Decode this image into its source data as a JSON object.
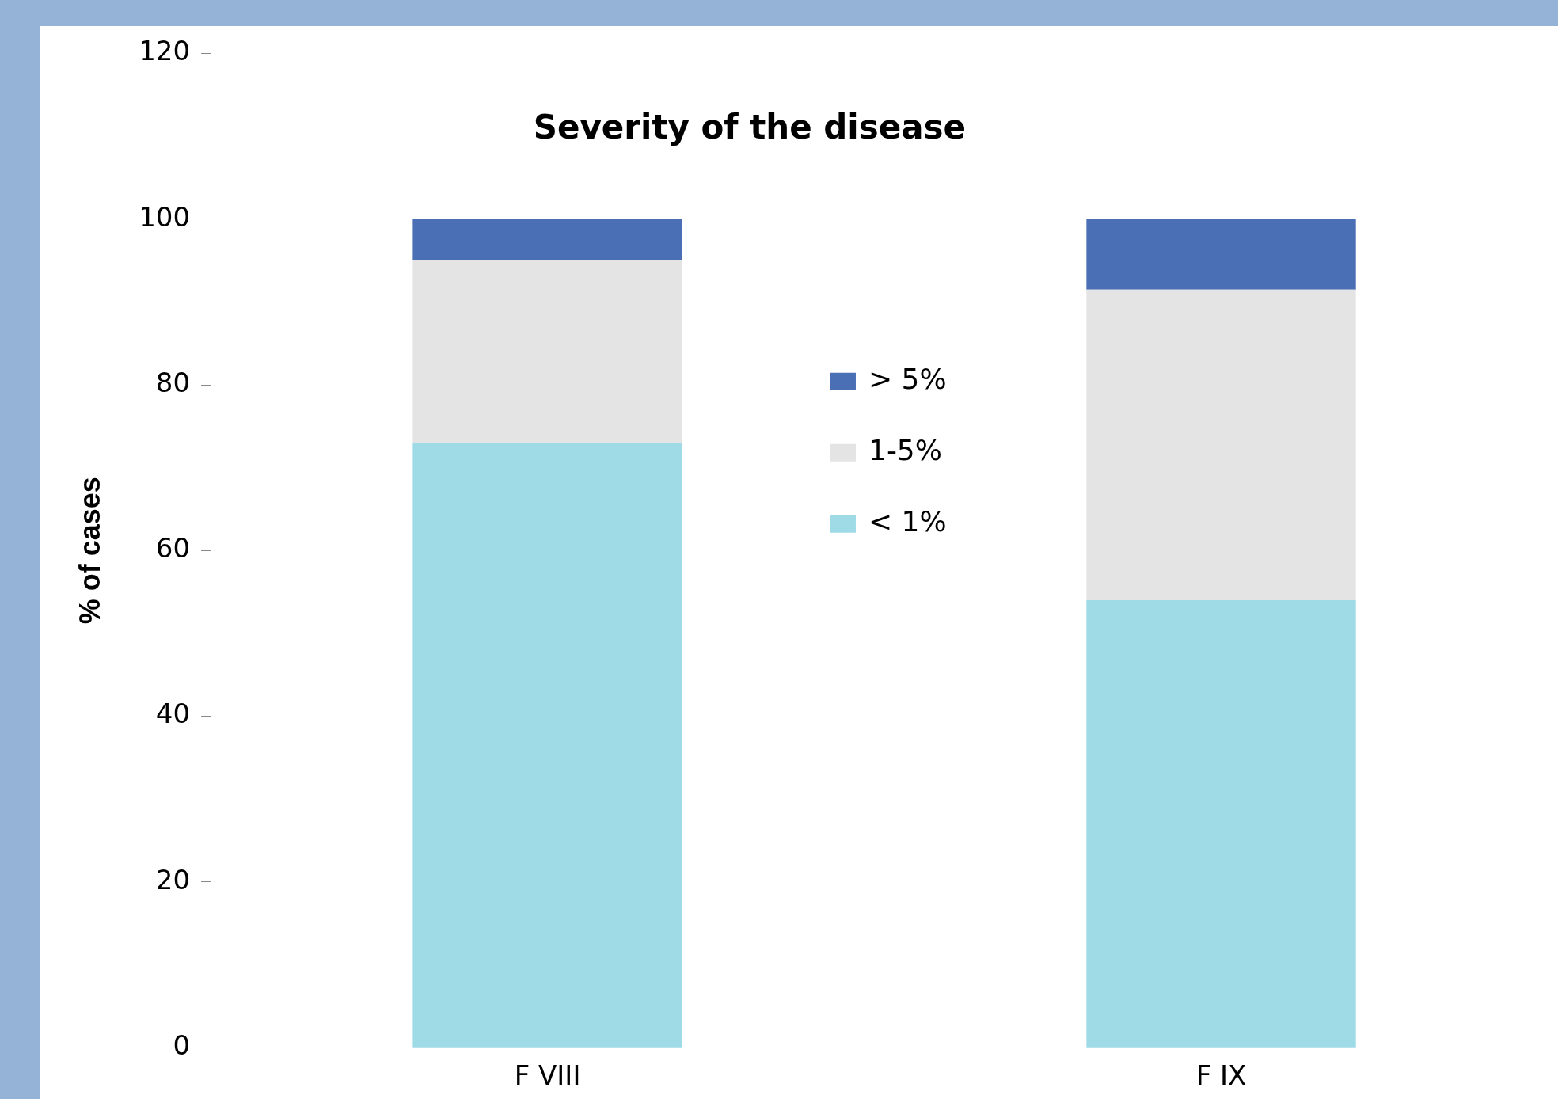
{
  "chart_data": {
    "type": "bar",
    "title": "Severity of the disease",
    "ylabel": "% of cases",
    "categories": [
      "F VIII",
      "F IX"
    ],
    "stacked": true,
    "series": [
      {
        "name": "< 1%",
        "color": "#9fdbe6",
        "values": [
          73,
          54
        ]
      },
      {
        "name": "1-5%",
        "color": "#e4e4e4",
        "values": [
          22,
          37.5
        ]
      },
      {
        "name": "> 5%",
        "color": "#4a6fb5",
        "values": [
          5,
          8.5
        ]
      }
    ],
    "ylim": [
      0,
      120
    ],
    "yticks": [
      0,
      20,
      40,
      60,
      80,
      100,
      120
    ],
    "grid": false,
    "legend": "center"
  }
}
